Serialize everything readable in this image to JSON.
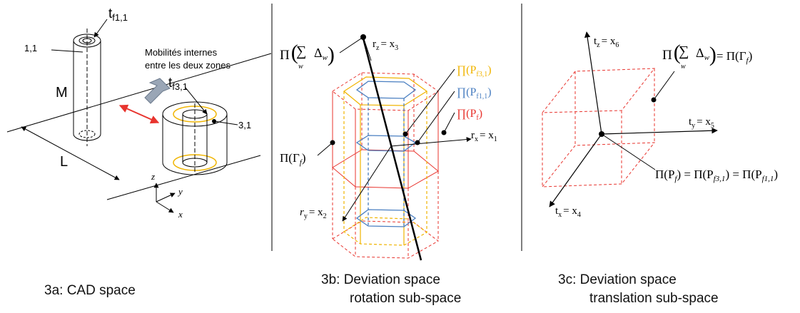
{
  "panel_a": {
    "label_11": "1,1",
    "label_tf11": "t",
    "label_tf11_sub": "f1,1",
    "note_line1": "Mobilités internes",
    "note_line2": "entre les deux zones",
    "label_M": "M",
    "label_L": "L",
    "label_tf31": "t",
    "label_tf31_sub": "f3,1",
    "label_31": "3,1",
    "axis_z": "z",
    "axis_y": "y",
    "axis_x": "x"
  },
  "panel_b": {
    "label_pi": "Π",
    "label_sum_sym": "∑",
    "label_sum_delta": "Δ",
    "label_sum_w": "w",
    "label_sum_sub": "w",
    "label_rz": "r",
    "label_rz_sub": "z",
    "label_rz_eq": "= x",
    "label_rz_idx": "3",
    "legend_pf31": "∏(P",
    "legend_pf31_sub": "f3,1",
    "legend_pf11": "∏(P",
    "legend_pf11_sub": "f1,1",
    "legend_pf": "∏(P",
    "legend_pf_sub": "f",
    "label_rx": "r",
    "label_rx_sub": "x",
    "label_rx_eq": "= x",
    "label_rx_idx": "1",
    "label_gamma": "Π(Γ",
    "label_gamma_sub": "f",
    "label_ry": "r",
    "label_ry_sub": "y",
    "label_ry_eq": "= x",
    "label_ry_idx": "2"
  },
  "panel_c": {
    "label_tz": "t",
    "label_tz_sub": "z",
    "label_tz_eq": "= x",
    "label_tz_idx": "6",
    "label_sum_eq": "= Π(Γ",
    "label_sum_eq_sub": "f",
    "label_ty": "t",
    "label_ty_sub": "y",
    "label_ty_eq": "= x",
    "label_ty_idx": "5",
    "label_pf_eq1": "Π(P",
    "label_pf_eq1_sub": "f",
    "label_pf_eq2": ") = Π(P",
    "label_pf_eq2_sub": "f3,1",
    "label_pf_eq3": ") = Π(P",
    "label_pf_eq3_sub": "f1,1",
    "label_tx": "t",
    "label_tx_sub": "x",
    "label_tx_eq": "= x",
    "label_tx_idx": "4"
  },
  "captions": {
    "a": "3a: CAD space",
    "b_line1": "3b: Deviation space",
    "b_line2": "rotation sub-space",
    "c_line1": "3c: Deviation space",
    "c_line2": "translation sub-space"
  },
  "colors": {
    "red": "#e8342e",
    "yellow": "#f0b400",
    "blue": "#4a7fc1",
    "gray_arrow": "#8a97a8",
    "divider": "#555555"
  }
}
